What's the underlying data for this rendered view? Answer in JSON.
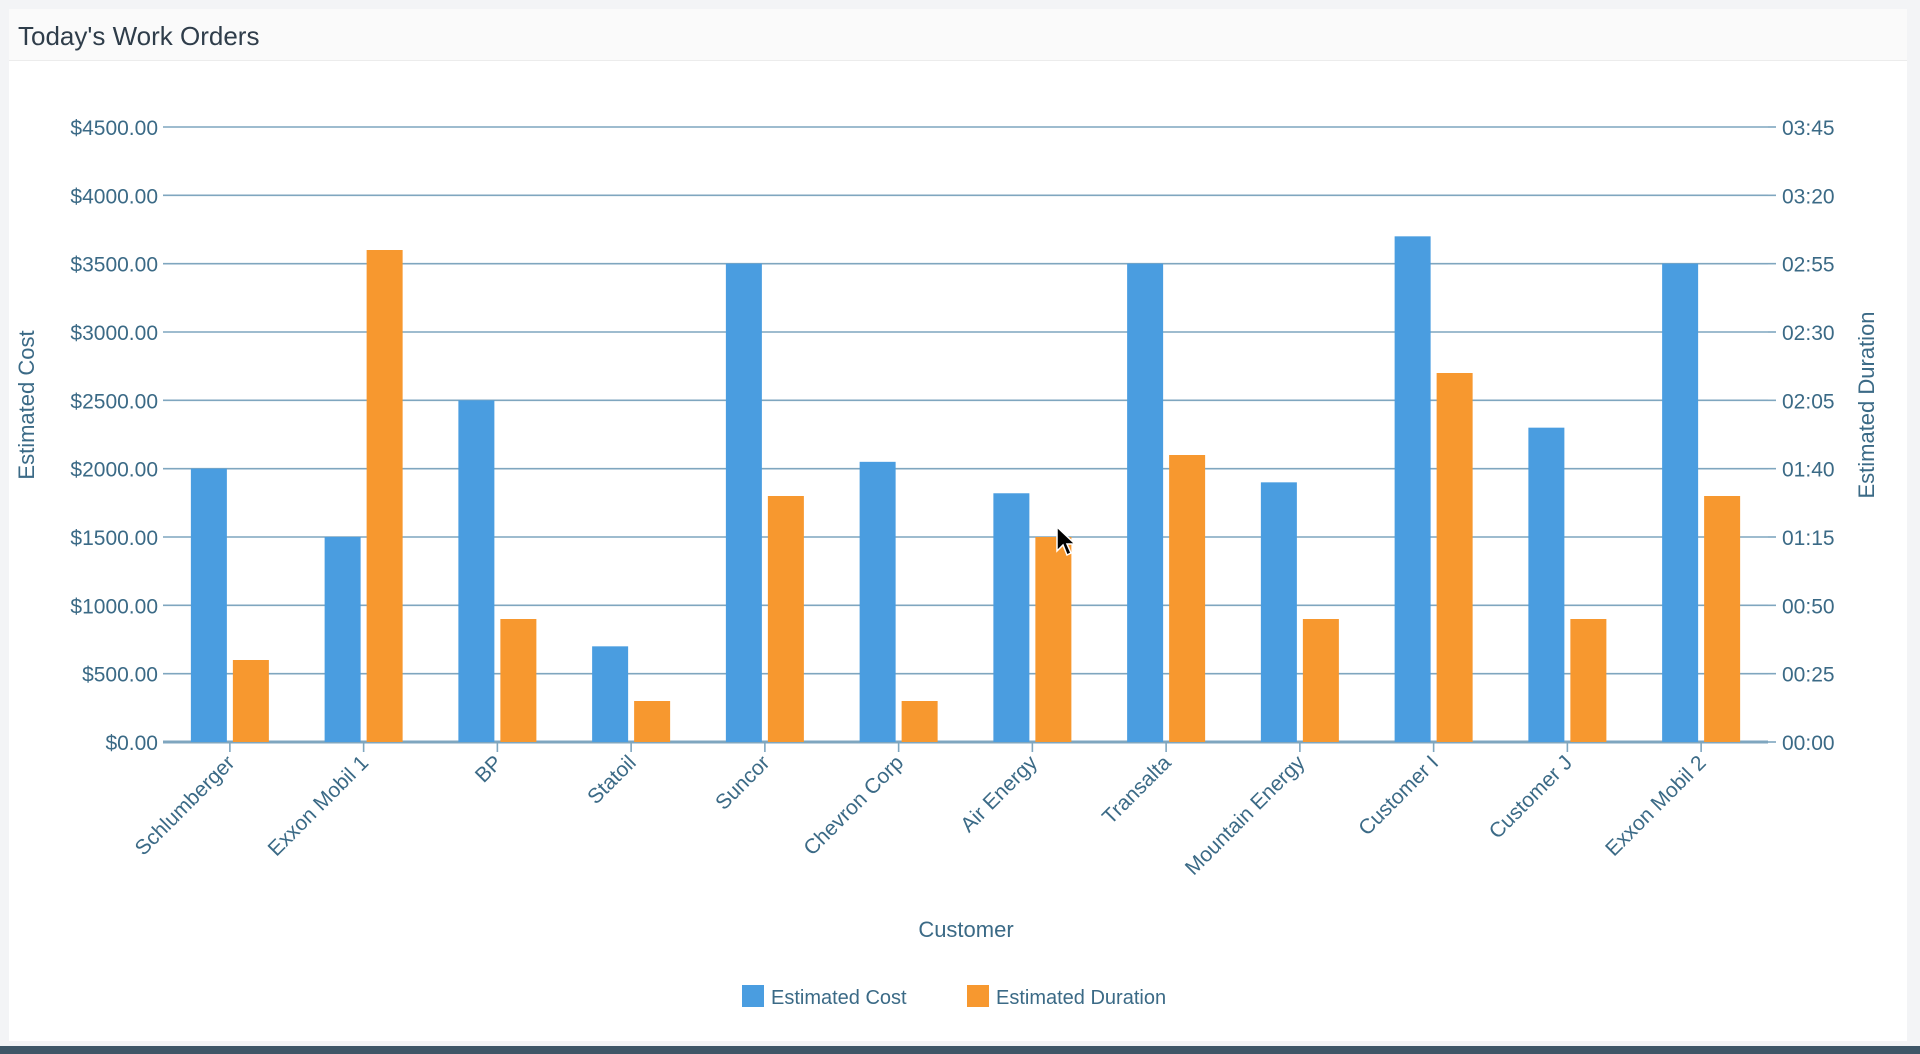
{
  "panel": {
    "title": "Today's Work Orders"
  },
  "chart_data": {
    "type": "bar",
    "categories": [
      "Schlumberger",
      "Exxon Mobil 1",
      "BP",
      "Statoil",
      "Suncor",
      "Chevron Corp",
      "Air Energy",
      "Transalta",
      "Mountain Energy",
      "Customer I",
      "Customer J",
      "Exxon Mobil 2"
    ],
    "series": [
      {
        "name": "Estimated Cost",
        "axis": "left",
        "color": "#4a9de0",
        "values": [
          2000,
          1500,
          2500,
          700,
          3500,
          2050,
          1820,
          3500,
          1900,
          3700,
          2300,
          3500
        ]
      },
      {
        "name": "Estimated Duration",
        "axis": "right",
        "color": "#f7982f",
        "values": [
          30,
          180,
          45,
          15,
          90,
          15,
          75,
          105,
          45,
          135,
          45,
          90
        ]
      }
    ],
    "xlabel": "Customer",
    "ylabel": "Estimated Cost",
    "y2label": "Estimated Duration",
    "ylim": [
      0,
      4500
    ],
    "y2lim": [
      0,
      225
    ],
    "yticks": [
      "$0.00",
      "$500.00",
      "$1000.00",
      "$1500.00",
      "$2000.00",
      "$2500.00",
      "$3000.00",
      "$3500.00",
      "$4000.00",
      "$4500.00"
    ],
    "y2ticks": [
      "00:00",
      "00:25",
      "00:50",
      "01:15",
      "01:40",
      "02:05",
      "02:30",
      "02:55",
      "03:20",
      "03:45"
    ],
    "grid": true,
    "legend": "bottom-center",
    "colors": {
      "gridline": "#7fa6bf",
      "axis_text": "#3b6a86"
    }
  }
}
